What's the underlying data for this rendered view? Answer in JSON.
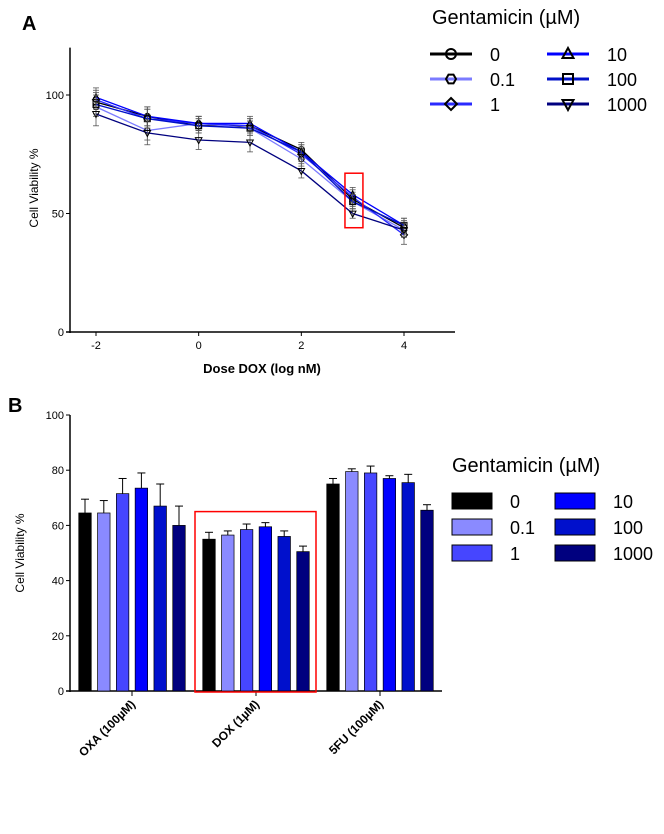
{
  "chart_data": [
    {
      "panel_label": "A",
      "type": "line",
      "xlabel": "Dose DOX (log nM)",
      "ylabel": "Cell Viability %",
      "xlim": [
        -2.5,
        5
      ],
      "ylim": [
        0,
        120
      ],
      "xticks": [
        -2,
        0,
        2,
        4
      ],
      "yticks": [
        0,
        50,
        100
      ],
      "grid": false,
      "legend": {
        "title": "Gentamicin (µM)",
        "placement": "top-right"
      },
      "x": [
        -2,
        -1,
        0,
        1,
        2,
        3,
        4
      ],
      "series": [
        {
          "name": "0",
          "color": "#000000",
          "marker": "circle",
          "values": [
            97,
            91,
            87,
            87,
            77,
            56,
            44
          ],
          "error": [
            4,
            4,
            3,
            3,
            3,
            3,
            3
          ]
        },
        {
          "name": "0.1",
          "color": "#7b7bff",
          "marker": "hexagon",
          "values": [
            95,
            85,
            88,
            86,
            73,
            55,
            43
          ],
          "error": [
            4,
            4,
            3,
            3,
            3,
            3,
            3
          ]
        },
        {
          "name": "1",
          "color": "#2a2aff",
          "marker": "diamond",
          "values": [
            98,
            90,
            88,
            87,
            75,
            57,
            41
          ],
          "error": [
            4,
            4,
            3,
            3,
            3,
            3,
            4
          ]
        },
        {
          "name": "10",
          "color": "#0000ff",
          "marker": "triangle-up",
          "values": [
            99,
            91,
            88,
            88,
            76,
            58,
            45
          ],
          "error": [
            4,
            4,
            3,
            3,
            3,
            3,
            3
          ]
        },
        {
          "name": "100",
          "color": "#0010c8",
          "marker": "square",
          "values": [
            96,
            90,
            87,
            86,
            76,
            55,
            45
          ],
          "error": [
            4,
            4,
            3,
            3,
            3,
            3,
            3
          ]
        },
        {
          "name": "1000",
          "color": "#00007f",
          "marker": "triangle-down",
          "values": [
            92,
            84,
            81,
            80,
            68,
            50,
            43
          ],
          "error": [
            5,
            5,
            4,
            4,
            3,
            2,
            3
          ]
        }
      ],
      "highlight_box": {
        "color": "#ff0000",
        "x": [
          2.85,
          3.2
        ],
        "y": [
          44,
          67
        ]
      }
    },
    {
      "panel_label": "B",
      "type": "bar",
      "xlabel": "",
      "ylabel": "Cell Viability %",
      "ylim": [
        0,
        100
      ],
      "yticks": [
        0,
        20,
        40,
        60,
        80,
        100
      ],
      "grid": false,
      "legend": {
        "title": "Gentamicin (µM)",
        "placement": "right"
      },
      "categories": [
        "OXA (100µM)",
        "DOX (1µM)",
        "5FU (100µM)"
      ],
      "series": [
        {
          "name": "0",
          "color": "#000000",
          "values": [
            64.5,
            55,
            75
          ],
          "error": [
            5,
            2.5,
            2
          ]
        },
        {
          "name": "0.1",
          "color": "#8a8aff",
          "values": [
            64.5,
            56.5,
            79.5
          ],
          "error": [
            4.5,
            1.5,
            1
          ]
        },
        {
          "name": "1",
          "color": "#4646ff",
          "values": [
            71.5,
            58.5,
            79
          ],
          "error": [
            5.5,
            2,
            2.5
          ]
        },
        {
          "name": "10",
          "color": "#0000ff",
          "values": [
            73.5,
            59.5,
            77
          ],
          "error": [
            5.5,
            1.5,
            1
          ]
        },
        {
          "name": "100",
          "color": "#0010cc",
          "values": [
            67,
            56,
            75.5
          ],
          "error": [
            8,
            2,
            3
          ]
        },
        {
          "name": "1000",
          "color": "#00007f",
          "values": [
            60,
            50.5,
            65.5
          ],
          "error": [
            7,
            2,
            2
          ]
        }
      ],
      "highlight_box": {
        "color": "#ff0000",
        "category": "DOX (1µM)",
        "y": [
          0,
          65
        ]
      }
    }
  ]
}
